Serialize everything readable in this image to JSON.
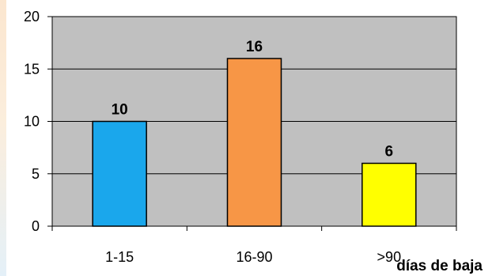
{
  "chart_data": {
    "type": "bar",
    "categories": [
      "1-15",
      "16-90",
      ">90"
    ],
    "values": [
      10,
      16,
      6
    ],
    "colors": [
      "#1aa7ec",
      "#f79646",
      "#ffff00"
    ],
    "xlabel": "días de baja",
    "ylabel": "",
    "ylim": [
      0,
      20
    ],
    "yticks": [
      0,
      5,
      10,
      15,
      20
    ],
    "grid": true,
    "plot_background": "#c0c0c0",
    "legend": "none"
  }
}
